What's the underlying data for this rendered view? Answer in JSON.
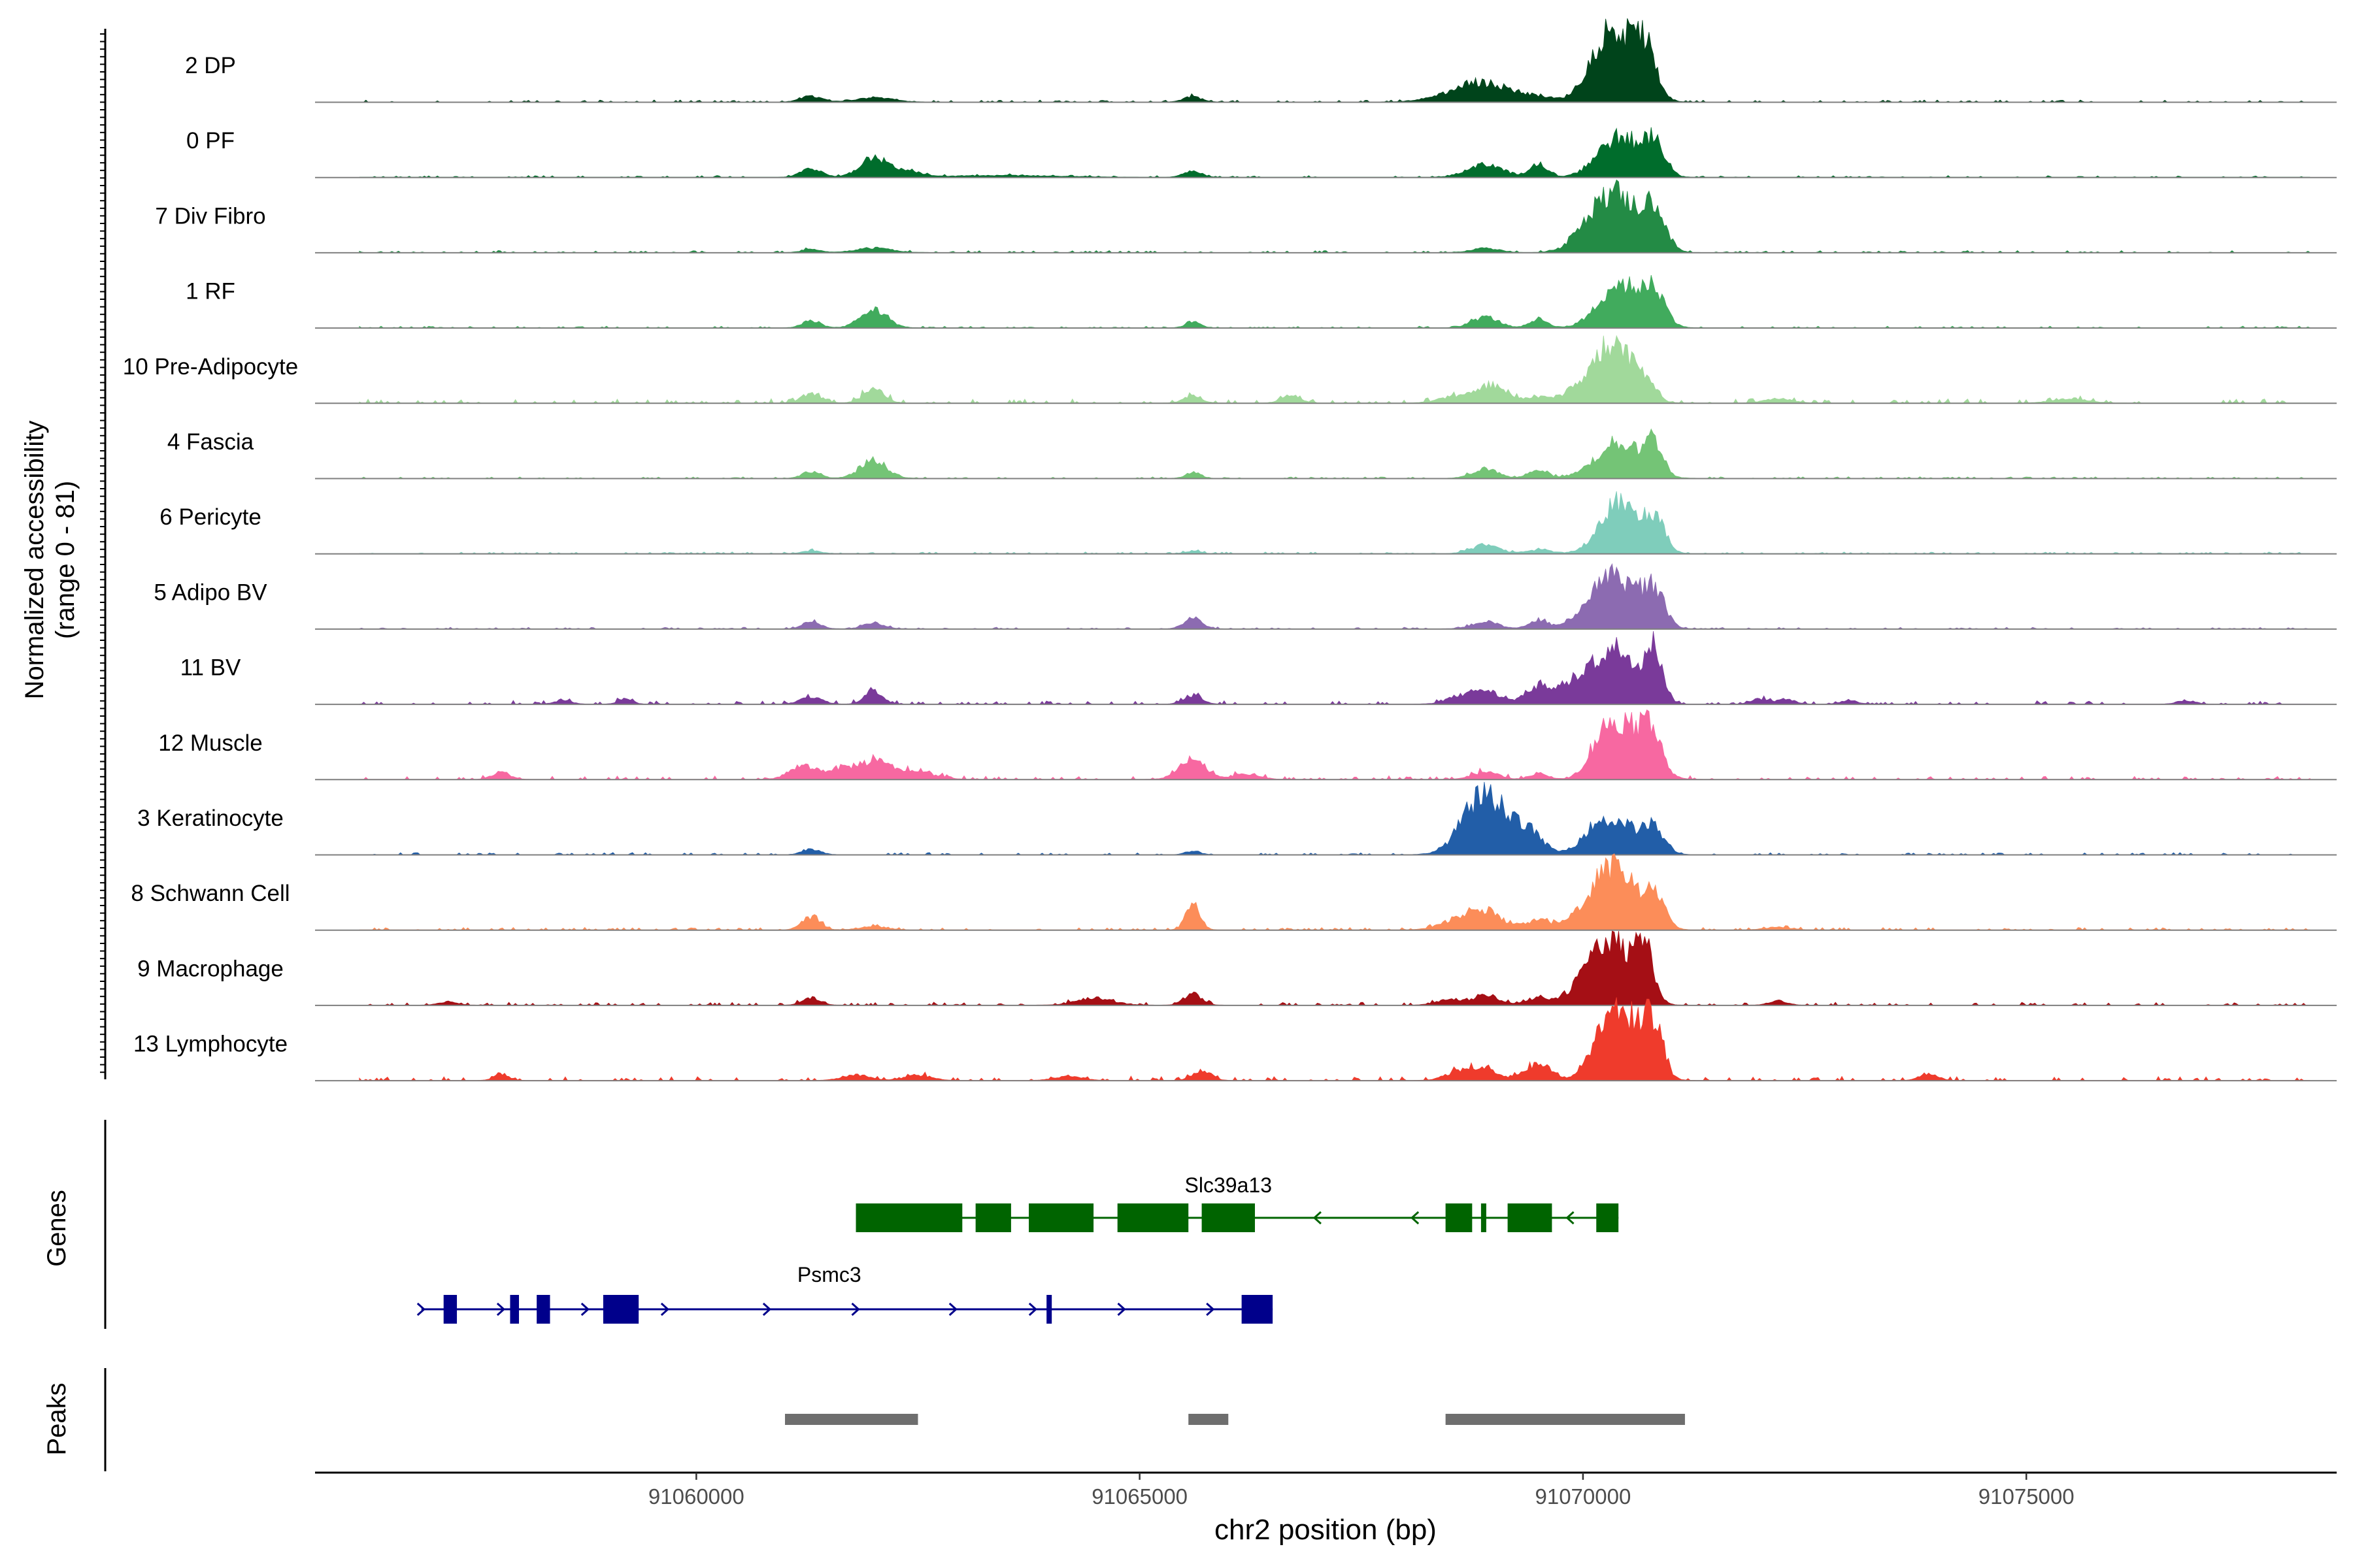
{
  "chart_data": {
    "type": "area",
    "title": "",
    "ylabel": "Normalized accessibility",
    "ylabel_range": "(range 0 - 81)",
    "xlabel": "chr2 position (bp)",
    "xlim": [
      91055700,
      91078500
    ],
    "ylim": [
      0,
      81
    ],
    "x_ticks": [
      91060000,
      91065000,
      91070000,
      91075000
    ],
    "x_tick_labels": [
      "91060000",
      "91065000",
      "91070000",
      "91075000"
    ],
    "tracks": [
      {
        "name": "2 DP",
        "color": "#00441b",
        "peaks": [
          [
            91070400,
            60,
            220
          ],
          [
            91070700,
            48,
            120
          ],
          [
            91070200,
            30,
            200
          ],
          [
            91068900,
            16,
            260
          ],
          [
            91068600,
            8,
            300
          ],
          [
            91061300,
            6,
            120
          ],
          [
            91062000,
            5,
            200
          ],
          [
            91065600,
            6,
            100
          ],
          [
            91069500,
            6,
            150
          ],
          [
            91069200,
            4,
            150
          ]
        ],
        "noise": 1.5
      },
      {
        "name": "0 PF",
        "color": "#006d2c",
        "peaks": [
          [
            91070400,
            45,
            230
          ],
          [
            91070800,
            35,
            120
          ],
          [
            91062000,
            23,
            150
          ],
          [
            91061300,
            9,
            120
          ],
          [
            91068900,
            14,
            200
          ],
          [
            91069500,
            15,
            100
          ],
          [
            91065600,
            7,
            100
          ],
          [
            91062400,
            6,
            150
          ],
          [
            91063500,
            2,
            600
          ]
        ],
        "noise": 1.2
      },
      {
        "name": "7 Div Fibro",
        "color": "#238b45",
        "peaks": [
          [
            91070400,
            58,
            220
          ],
          [
            91070800,
            45,
            130
          ],
          [
            91070100,
            25,
            200
          ],
          [
            91068900,
            5,
            150
          ],
          [
            91061300,
            4,
            100
          ],
          [
            91062000,
            5,
            200
          ]
        ],
        "noise": 1.5
      },
      {
        "name": "1 RF",
        "color": "#41ab5d",
        "peaks": [
          [
            91070400,
            50,
            220
          ],
          [
            91070800,
            38,
            130
          ],
          [
            91062000,
            20,
            150
          ],
          [
            91061300,
            8,
            100
          ],
          [
            91068900,
            12,
            150
          ],
          [
            91069500,
            10,
            100
          ],
          [
            91065600,
            7,
            80
          ]
        ],
        "noise": 1.2
      },
      {
        "name": "10 Pre-Adipocyte",
        "color": "#a1d99b",
        "peaks": [
          [
            91070300,
            58,
            150
          ],
          [
            91070600,
            40,
            150
          ],
          [
            91070000,
            20,
            180
          ],
          [
            91069000,
            20,
            150
          ],
          [
            91068600,
            8,
            200
          ],
          [
            91062000,
            15,
            120
          ],
          [
            91061300,
            10,
            120
          ],
          [
            91065600,
            8,
            100
          ],
          [
            91066700,
            10,
            100
          ],
          [
            91069500,
            6,
            150
          ],
          [
            91072200,
            5,
            150
          ],
          [
            91075500,
            5,
            200
          ]
        ],
        "noise": 3
      },
      {
        "name": "4 Fascia",
        "color": "#74c476",
        "peaks": [
          [
            91070400,
            40,
            250
          ],
          [
            91070800,
            35,
            100
          ],
          [
            91062000,
            20,
            150
          ],
          [
            91061300,
            8,
            100
          ],
          [
            91068900,
            10,
            150
          ],
          [
            91069500,
            10,
            100
          ],
          [
            91065600,
            7,
            80
          ]
        ],
        "noise": 1.2
      },
      {
        "name": "6 Pericyte",
        "color": "#7fcdbb",
        "peaks": [
          [
            91070400,
            58,
            200
          ],
          [
            91070800,
            38,
            120
          ],
          [
            91068900,
            10,
            150
          ],
          [
            91069500,
            4,
            150
          ],
          [
            91061300,
            3,
            100
          ],
          [
            91065600,
            3,
            80
          ]
        ],
        "noise": 1.2
      },
      {
        "name": "5 Adipo BV",
        "color": "#8c6bb1",
        "peaks": [
          [
            91070400,
            52,
            220
          ],
          [
            91070800,
            40,
            120
          ],
          [
            91070100,
            20,
            200
          ],
          [
            91065600,
            12,
            100
          ],
          [
            91061300,
            8,
            100
          ],
          [
            91062000,
            6,
            120
          ],
          [
            91068900,
            8,
            150
          ],
          [
            91069500,
            10,
            100
          ]
        ],
        "noise": 1.2
      },
      {
        "name": "11 BV",
        "color": "#7a3a9a",
        "peaks": [
          [
            91070400,
            58,
            200
          ],
          [
            91070800,
            60,
            100
          ],
          [
            91070000,
            30,
            200
          ],
          [
            91069500,
            20,
            150
          ],
          [
            91068900,
            15,
            150
          ],
          [
            91068600,
            8,
            150
          ],
          [
            91061300,
            8,
            120
          ],
          [
            91062000,
            15,
            100
          ],
          [
            91065600,
            10,
            100
          ],
          [
            91059200,
            6,
            80
          ],
          [
            91058500,
            4,
            100
          ],
          [
            91072000,
            6,
            100
          ],
          [
            91072300,
            5,
            100
          ],
          [
            91073000,
            4,
            100
          ],
          [
            91076800,
            4,
            100
          ]
        ],
        "noise": 2.5
      },
      {
        "name": "12 Muscle",
        "color": "#f768a1",
        "peaks": [
          [
            91070500,
            60,
            220
          ],
          [
            91070200,
            30,
            150
          ],
          [
            91070800,
            40,
            100
          ],
          [
            91065600,
            22,
            150
          ],
          [
            91062000,
            20,
            200
          ],
          [
            91061200,
            15,
            150
          ],
          [
            91061600,
            10,
            150
          ],
          [
            91062500,
            8,
            200
          ],
          [
            91057800,
            8,
            100
          ],
          [
            91068900,
            8,
            150
          ],
          [
            91069500,
            7,
            100
          ],
          [
            91066200,
            6,
            150
          ]
        ],
        "noise": 2.5
      },
      {
        "name": "3 Keratinocyte",
        "color": "#225ea8",
        "peaks": [
          [
            91068900,
            52,
            200
          ],
          [
            91069300,
            32,
            200
          ],
          [
            91068700,
            18,
            200
          ],
          [
            91070400,
            35,
            220
          ],
          [
            91070800,
            26,
            120
          ],
          [
            91070100,
            18,
            150
          ],
          [
            91061300,
            6,
            100
          ],
          [
            91065600,
            4,
            80
          ]
        ],
        "noise": 1.5
      },
      {
        "name": "8 Schwann Cell",
        "color": "#fc8d59",
        "peaks": [
          [
            91070400,
            60,
            200
          ],
          [
            91070800,
            40,
            120
          ],
          [
            91070100,
            28,
            200
          ],
          [
            91068900,
            18,
            200
          ],
          [
            91068600,
            10,
            200
          ],
          [
            91069500,
            10,
            150
          ],
          [
            91065600,
            28,
            80
          ],
          [
            91061300,
            15,
            100
          ],
          [
            91062000,
            4,
            150
          ],
          [
            91072200,
            3,
            150
          ]
        ],
        "noise": 1.8
      },
      {
        "name": "9 Macrophage",
        "color": "#a50f15",
        "peaks": [
          [
            91070400,
            55,
            200
          ],
          [
            91070700,
            55,
            100
          ],
          [
            91070100,
            35,
            200
          ],
          [
            91065600,
            12,
            100
          ],
          [
            91061300,
            8,
            100
          ],
          [
            91064500,
            8,
            200
          ],
          [
            91068900,
            10,
            150
          ],
          [
            91069500,
            8,
            150
          ],
          [
            91068500,
            6,
            150
          ],
          [
            91072200,
            5,
            100
          ],
          [
            91057200,
            4,
            100
          ]
        ],
        "noise": 2.2
      },
      {
        "name": "13 Lymphocyte",
        "color": "#ef3b2c",
        "peaks": [
          [
            91070500,
            70,
            200
          ],
          [
            91070800,
            50,
            100
          ],
          [
            91070200,
            35,
            150
          ],
          [
            91069500,
            18,
            150
          ],
          [
            91068900,
            12,
            150
          ],
          [
            91068600,
            10,
            150
          ],
          [
            91057800,
            8,
            80
          ],
          [
            91065700,
            12,
            100
          ],
          [
            91073900,
            8,
            100
          ],
          [
            91061800,
            6,
            150
          ],
          [
            91062500,
            6,
            150
          ],
          [
            91064200,
            5,
            150
          ]
        ],
        "noise": 3
      }
    ],
    "genes_label": "Genes",
    "peaks_label": "Peaks",
    "genes": [
      {
        "name": "Slc39a13",
        "color": "#006400",
        "strand": "-",
        "start": 91061800,
        "end": 91070400,
        "label_x": 91066000,
        "exons": [
          [
            91061800,
            91063000
          ],
          [
            91063150,
            91063550
          ],
          [
            91063750,
            91064480
          ],
          [
            91064750,
            91065550
          ],
          [
            91065700,
            91066300
          ],
          [
            91068450,
            91068750
          ],
          [
            91068850,
            91068900
          ],
          [
            91069150,
            91069650
          ],
          [
            91070150,
            91070400
          ]
        ],
        "arrows": [
          91067000,
          91068100,
          91069850
        ]
      },
      {
        "name": "Psmc3",
        "color": "#00008b",
        "strand": "+",
        "start": 91056900,
        "end": 91066500,
        "label_x": 91061500,
        "exons": [
          [
            91057150,
            91057300
          ],
          [
            91057900,
            91058000
          ],
          [
            91058200,
            91058350
          ],
          [
            91058950,
            91059350
          ],
          [
            91063950,
            91064000
          ],
          [
            91066150,
            91066500
          ]
        ],
        "arrows": [
          91056900,
          91057800,
          91058750,
          91059650,
          91060800,
          91061800,
          91062900,
          91063800,
          91064800,
          91065800
        ]
      }
    ],
    "peak_regions": [
      [
        91061000,
        91062500
      ],
      [
        91065550,
        91066000
      ],
      [
        91068450,
        91071150
      ]
    ]
  }
}
